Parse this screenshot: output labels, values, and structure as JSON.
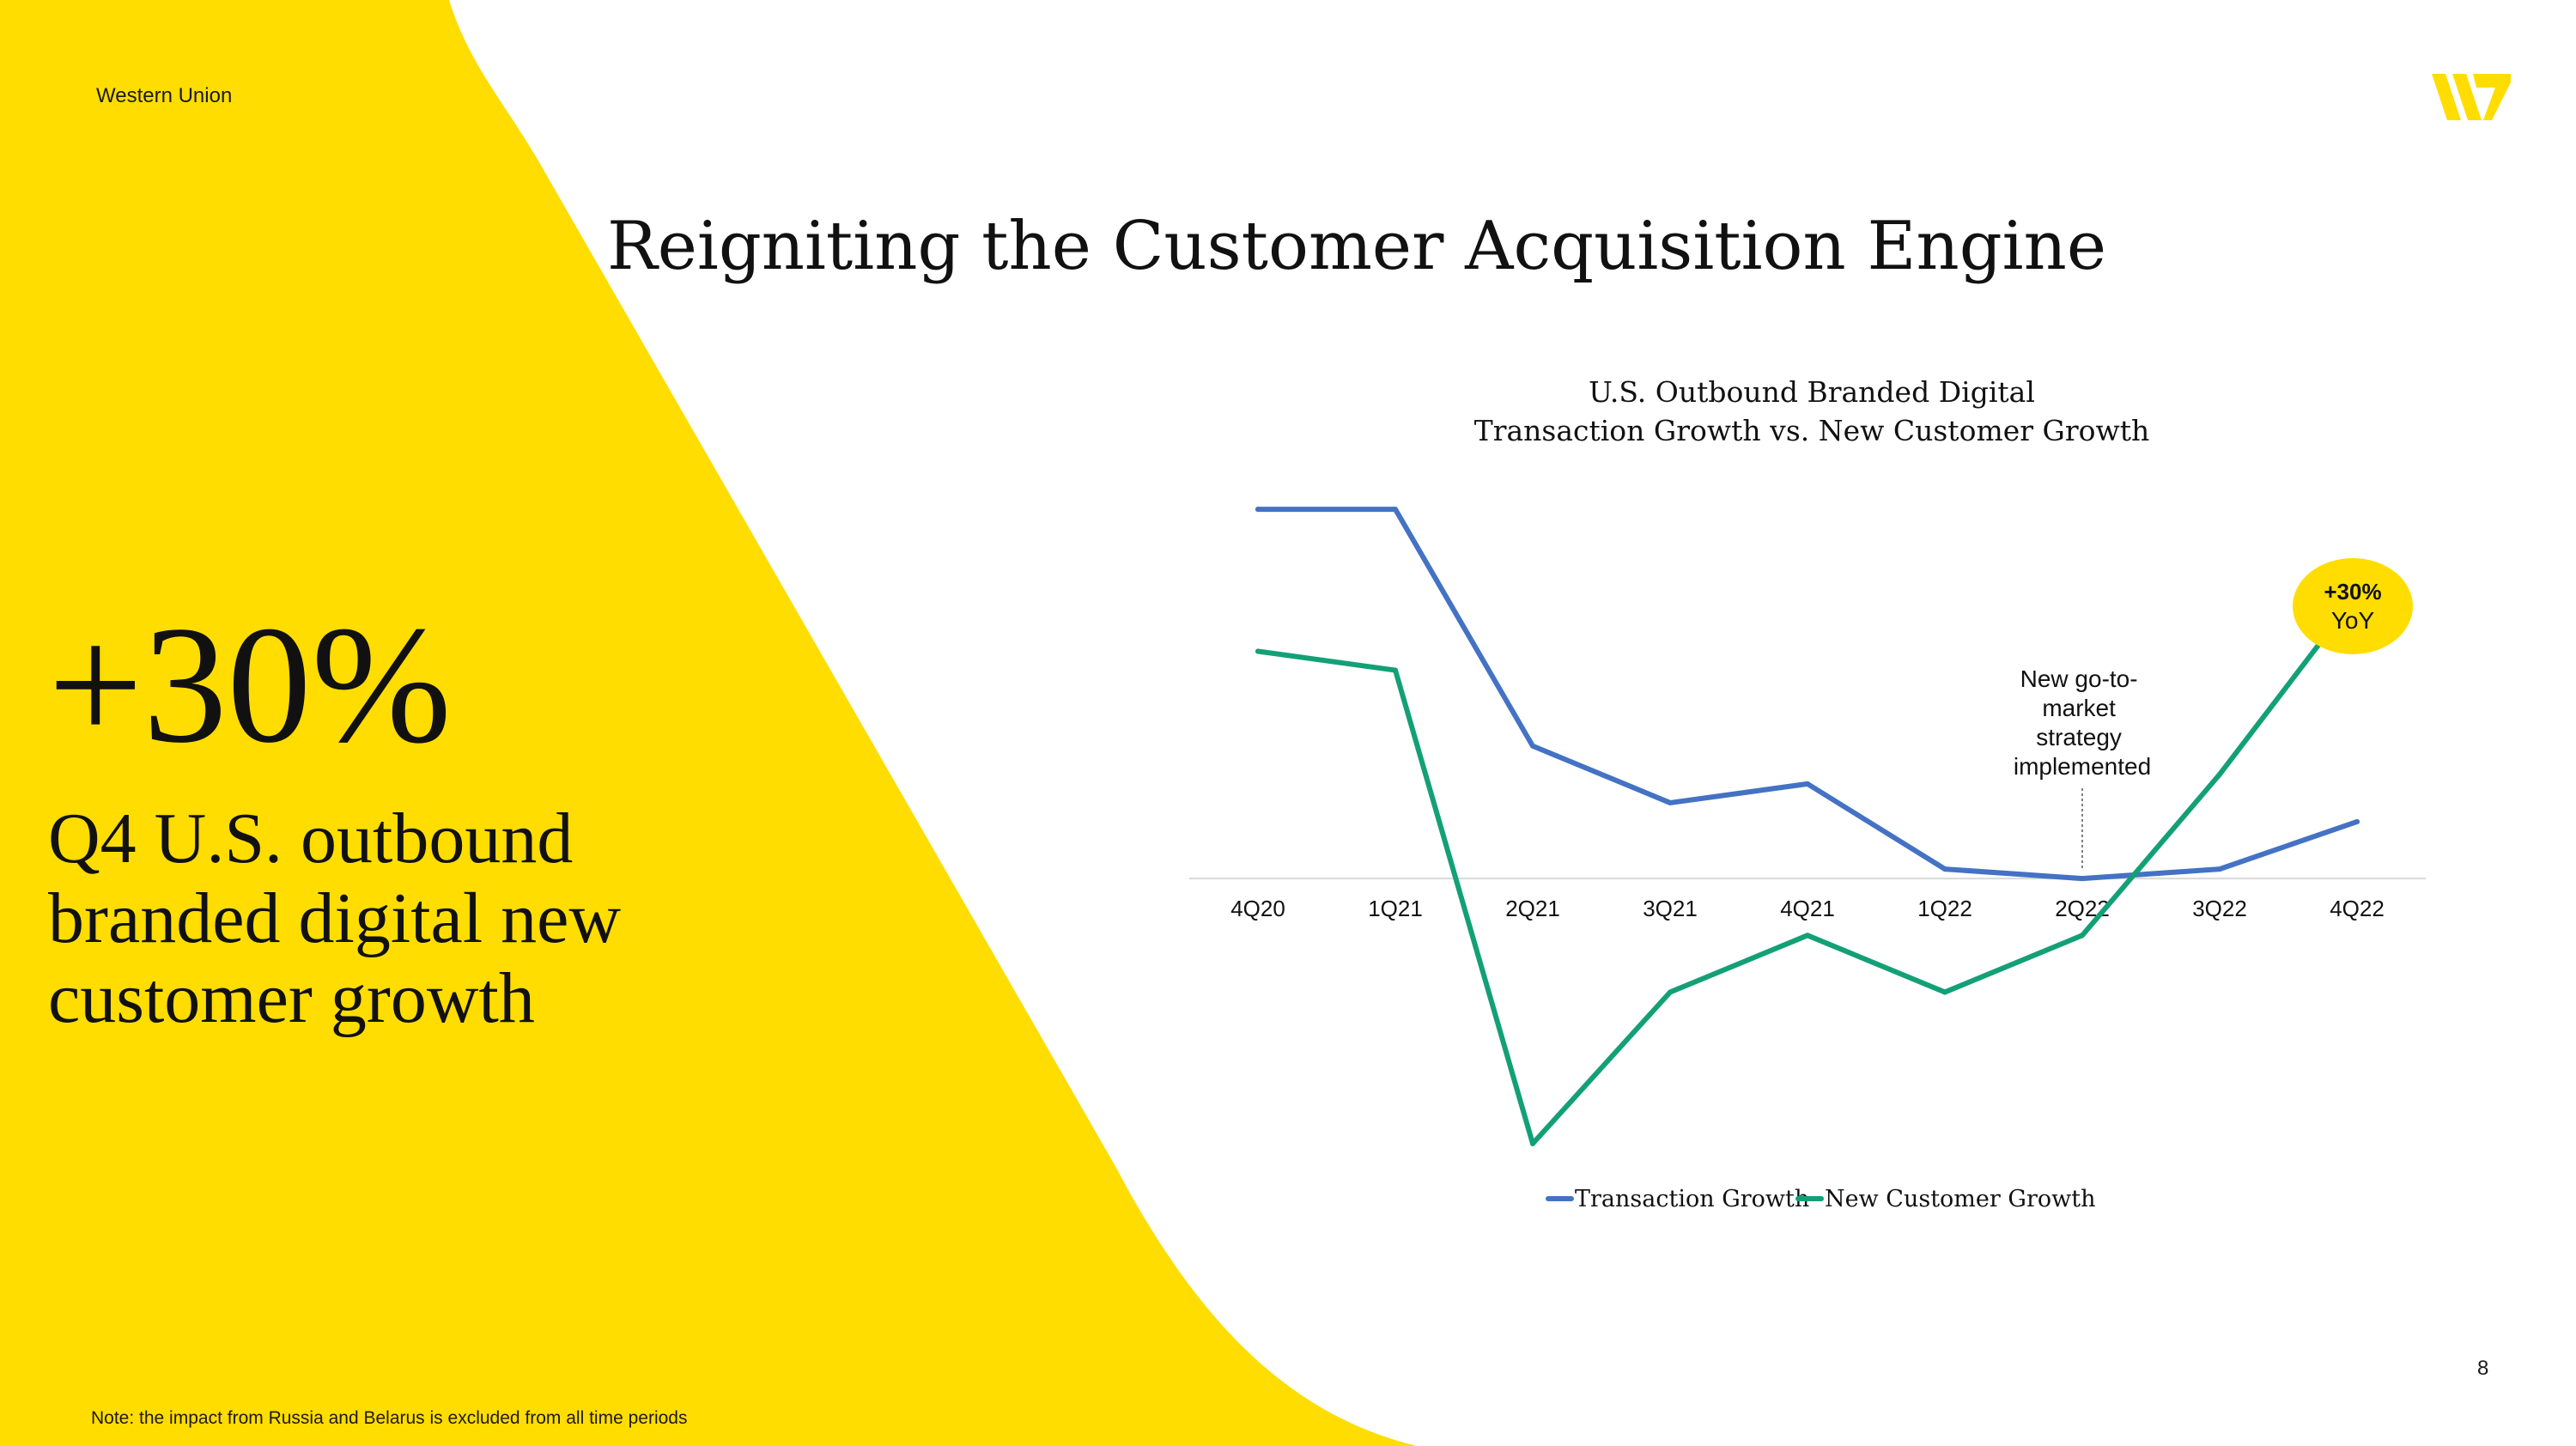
{
  "header": {
    "company": "Western Union",
    "logo_alt": "Western Union logo"
  },
  "slide": {
    "title": "Reigniting the Customer Acquisition Engine",
    "page_number": "8"
  },
  "highlight": {
    "stat": "+30%",
    "description": "Q4 U.S. outbound branded digital new customer growth"
  },
  "footer": {
    "note": "Note: the impact from Russia and Belarus is excluded from all time periods"
  },
  "colors": {
    "brand_yellow": "#FFDD00",
    "transaction_line": "#4472C4",
    "customer_line": "#13A077",
    "text": "#111111"
  },
  "chart_data": {
    "type": "line",
    "title_line1": "U.S. Outbound Branded Digital",
    "title_line2": "Transaction Growth vs. New Customer Growth",
    "categories": [
      "4Q20",
      "1Q21",
      "2Q21",
      "3Q21",
      "4Q21",
      "1Q22",
      "2Q22",
      "3Q22",
      "4Q22"
    ],
    "series": [
      {
        "name": "Transaction Growth",
        "values": [
          39,
          39,
          14,
          8,
          10,
          1,
          0,
          1,
          6
        ]
      },
      {
        "name": "New Customer Growth",
        "values": [
          24,
          22,
          -28,
          -12,
          -6,
          -12,
          -6,
          11,
          30
        ]
      }
    ],
    "ylim": [
      -32,
      42
    ],
    "grid": false,
    "legend": "bottom-center",
    "annotations": [
      {
        "text_lines": [
          "New go-to-",
          "market",
          "strategy",
          "implemented"
        ],
        "category": "2Q22"
      },
      {
        "callout_line1": "+30%",
        "callout_line2": "YoY",
        "category": "4Q22"
      }
    ]
  }
}
